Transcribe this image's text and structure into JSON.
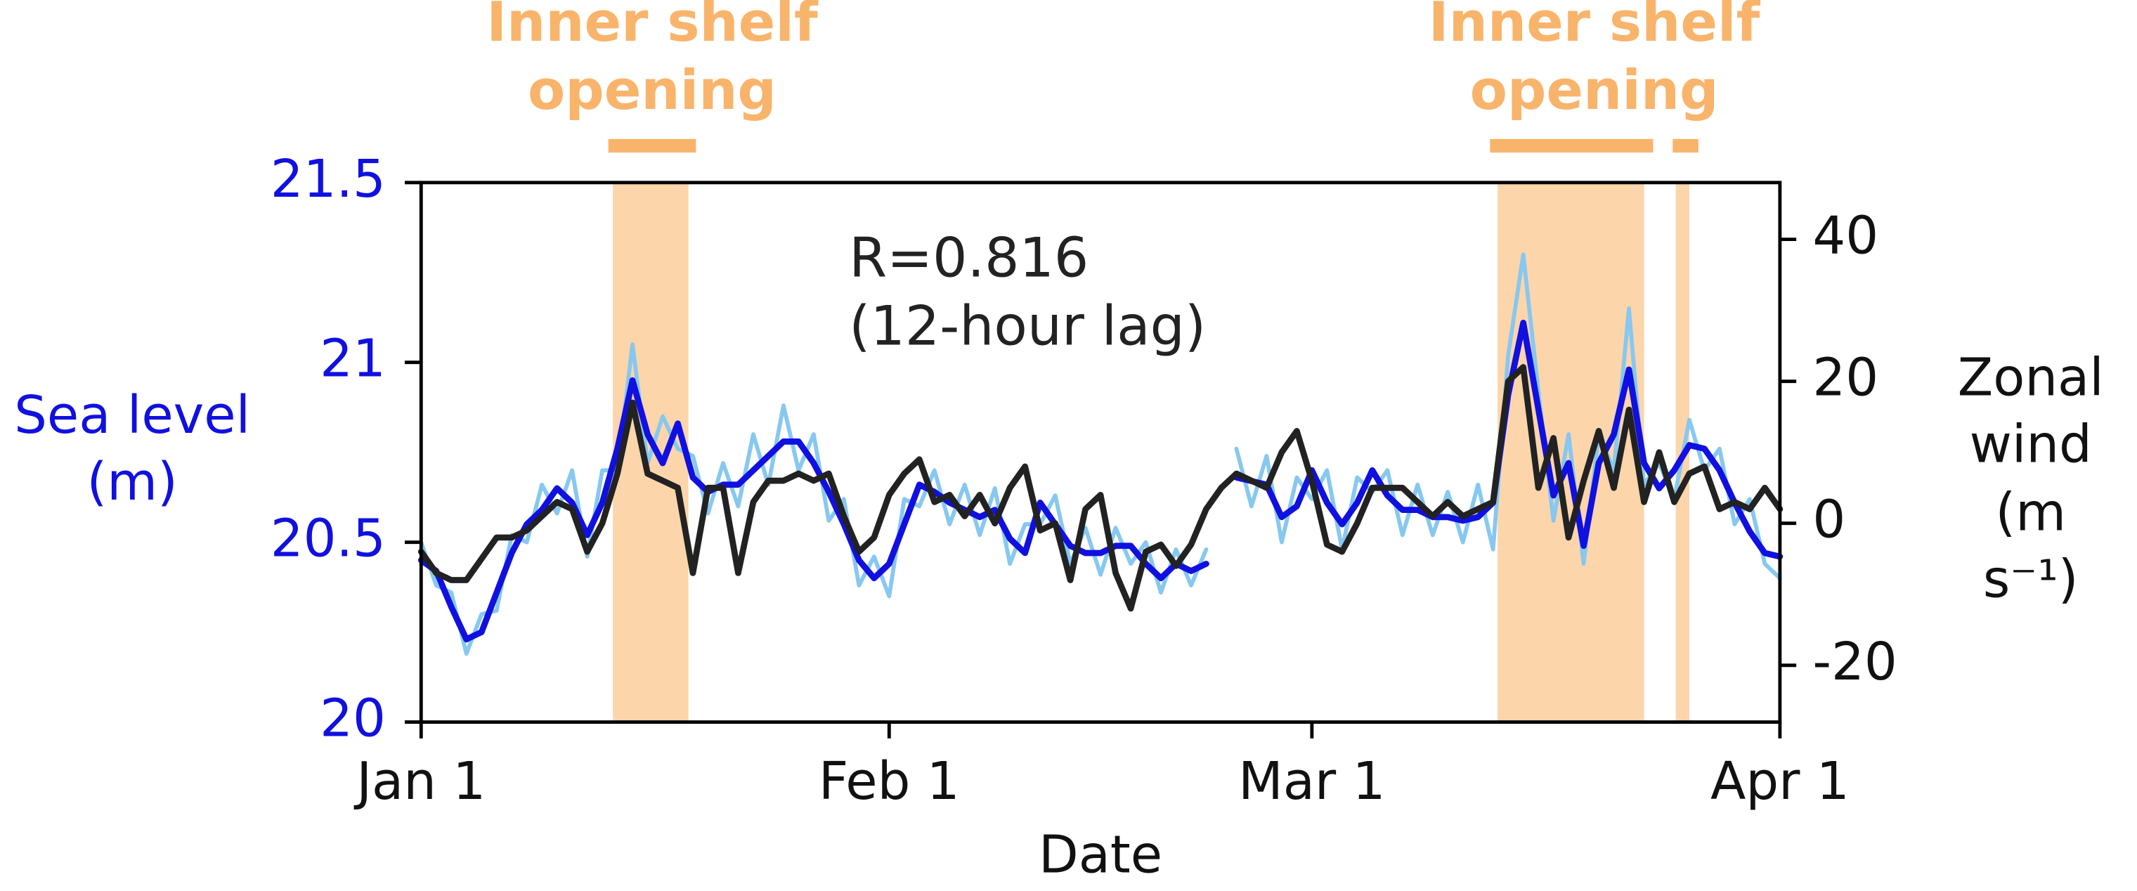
{
  "chart_data": {
    "type": "line",
    "x_label": "Date",
    "y_label": "Sea level\n(m)",
    "y2_label": "Zonal\nwind\n(m s⁻¹)",
    "y_label_color": "#1010e0",
    "annotation_text": "R=0.816\n(12-hour lag)",
    "xlim": [
      0,
      90
    ],
    "xticks": [
      {
        "value": 0,
        "label": "Jan 1"
      },
      {
        "value": 31,
        "label": "Feb 1"
      },
      {
        "value": 59,
        "label": "Mar 1"
      },
      {
        "value": 90,
        "label": "Apr 1"
      }
    ],
    "ylim": [
      20,
      21.5
    ],
    "yticks": [
      20,
      20.5,
      21,
      21.5
    ],
    "y2lim": [
      -28,
      48
    ],
    "y2ticks": [
      -20,
      0,
      20,
      40
    ],
    "shade_color": "#fdd5ab",
    "shaded_spans": [
      [
        12.7,
        17.7
      ],
      [
        71.3,
        81.0
      ],
      [
        83.1,
        84.0
      ]
    ],
    "span_label_color": "#f9b46b",
    "span_labels": [
      {
        "text": "Inner shelf\nopening",
        "spans": [
          [
            12.4,
            18.2
          ]
        ]
      },
      {
        "text": "Inner shelf\nopening",
        "spans": [
          [
            70.8,
            81.6
          ],
          [
            82.9,
            84.6
          ]
        ]
      }
    ],
    "x": [
      0,
      1,
      2,
      3,
      4,
      5,
      6,
      7,
      8,
      9,
      10,
      11,
      12,
      13,
      14,
      15,
      16,
      17,
      18,
      19,
      20,
      21,
      22,
      23,
      24,
      25,
      26,
      27,
      28,
      29,
      30,
      31,
      32,
      33,
      34,
      35,
      36,
      37,
      38,
      39,
      40,
      41,
      42,
      43,
      44,
      45,
      46,
      47,
      48,
      49,
      50,
      51,
      52,
      53,
      54,
      55,
      56,
      57,
      58,
      59,
      60,
      61,
      62,
      63,
      64,
      65,
      66,
      67,
      68,
      69,
      70,
      71,
      72,
      73,
      74,
      75,
      76,
      77,
      78,
      79,
      80,
      81,
      82,
      83,
      84,
      85,
      86,
      87,
      88,
      89,
      90
    ],
    "series": [
      {
        "color": "#87c8f0",
        "width": 3,
        "axis": "y",
        "values": [
          20.5,
          20.38,
          20.36,
          20.19,
          20.3,
          20.31,
          20.52,
          20.5,
          20.66,
          20.58,
          20.7,
          20.46,
          20.7,
          20.7,
          21.05,
          20.72,
          20.85,
          20.76,
          20.74,
          20.58,
          20.72,
          20.6,
          20.8,
          20.66,
          20.88,
          20.7,
          20.8,
          20.56,
          20.62,
          20.38,
          20.46,
          20.35,
          20.62,
          20.6,
          20.7,
          20.55,
          20.66,
          20.52,
          20.65,
          20.44,
          20.55,
          20.55,
          20.63,
          20.44,
          20.54,
          20.41,
          20.54,
          20.44,
          20.5,
          20.36,
          20.48,
          20.38,
          20.48,
          null,
          20.76,
          20.6,
          20.74,
          20.5,
          20.68,
          20.62,
          20.7,
          20.48,
          20.68,
          20.64,
          20.7,
          20.52,
          20.66,
          20.52,
          20.64,
          20.5,
          20.66,
          20.48,
          21.02,
          21.3,
          20.92,
          20.56,
          20.8,
          20.44,
          20.8,
          20.7,
          21.15,
          20.66,
          20.72,
          20.62,
          20.84,
          20.7,
          20.76,
          20.55,
          20.62,
          20.44,
          20.4
        ]
      },
      {
        "color": "#1010e0",
        "width": 4.5,
        "axis": "y",
        "values": [
          20.45,
          20.42,
          20.32,
          20.23,
          20.25,
          20.36,
          20.47,
          20.55,
          20.59,
          20.65,
          20.61,
          20.52,
          20.61,
          20.76,
          20.95,
          20.8,
          20.72,
          20.83,
          20.68,
          20.64,
          20.66,
          20.66,
          20.7,
          20.74,
          20.78,
          20.78,
          20.72,
          20.64,
          20.55,
          20.45,
          20.4,
          20.44,
          20.55,
          20.66,
          20.64,
          20.61,
          20.59,
          20.57,
          20.59,
          20.51,
          20.47,
          20.61,
          20.55,
          20.49,
          20.47,
          20.47,
          20.49,
          20.49,
          20.44,
          20.4,
          20.44,
          20.42,
          20.44,
          null,
          20.68,
          20.67,
          20.66,
          20.57,
          20.6,
          20.7,
          20.61,
          20.55,
          20.61,
          20.7,
          20.63,
          20.59,
          20.59,
          20.57,
          20.57,
          20.56,
          20.57,
          20.61,
          20.91,
          21.11,
          20.87,
          20.63,
          20.72,
          20.49,
          20.72,
          20.8,
          20.98,
          20.72,
          20.65,
          20.7,
          20.77,
          20.76,
          20.7,
          20.61,
          20.53,
          20.47,
          20.46
        ]
      },
      {
        "color": "#222222",
        "width": 4.5,
        "axis": "y2",
        "values": [
          -4,
          -7,
          -8,
          -8,
          -5,
          -2,
          -2,
          -1,
          1,
          3,
          2,
          -4,
          0,
          7,
          17,
          7,
          6,
          5,
          -7,
          5,
          5,
          -7,
          3,
          6,
          6,
          7,
          6,
          7,
          1,
          -4,
          -2,
          4,
          7,
          9,
          3,
          4,
          1,
          4,
          0,
          5,
          8,
          -1,
          0,
          -8,
          2,
          4,
          -7,
          -12,
          -4,
          -3,
          -6,
          -3,
          2,
          5,
          7,
          6,
          5,
          10,
          13,
          6,
          -3,
          -4,
          0,
          5,
          5,
          5,
          3,
          1,
          3,
          1,
          2,
          3,
          20,
          22,
          5,
          12,
          -2,
          6,
          13,
          5,
          16,
          3,
          10,
          3,
          7,
          8,
          2,
          3,
          2,
          5,
          2
        ]
      }
    ]
  }
}
